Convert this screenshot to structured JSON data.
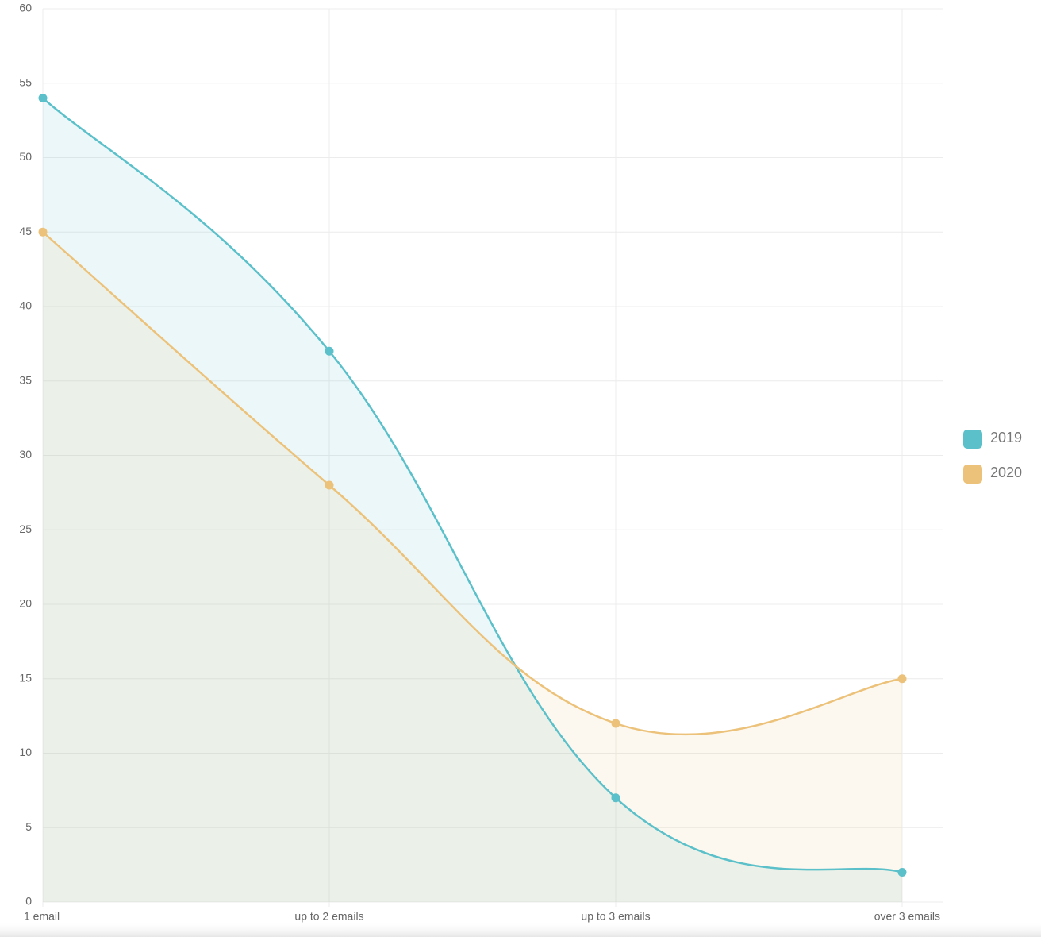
{
  "chart_data": {
    "type": "line",
    "categories": [
      "1 email",
      "up to 2 emails",
      "up to 3 emails",
      "over 3 emails"
    ],
    "series": [
      {
        "name": "2019",
        "color": "#5bc0c9",
        "values": [
          54,
          37,
          7,
          2
        ]
      },
      {
        "name": "2020",
        "color": "#ecc27a",
        "values": [
          45,
          28,
          12,
          15
        ]
      }
    ],
    "ylim": [
      0,
      60
    ],
    "yticks": [
      0,
      5,
      10,
      15,
      20,
      25,
      30,
      35,
      40,
      45,
      50,
      55,
      60
    ],
    "grid": true,
    "fill": true,
    "legend": "right"
  }
}
